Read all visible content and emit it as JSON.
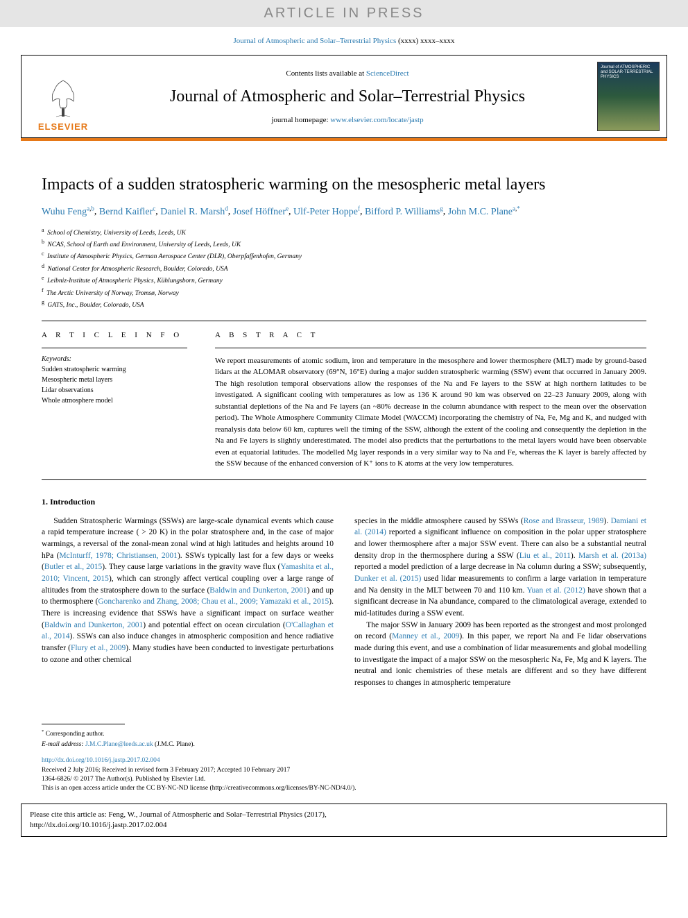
{
  "banner": "ARTICLE IN PRESS",
  "journal_ref": {
    "name": "Journal of Atmospheric and Solar–Terrestrial Physics",
    "pages": "(xxxx) xxxx–xxxx"
  },
  "header": {
    "contents_prefix": "Contents lists available at ",
    "contents_link": "ScienceDirect",
    "journal_name": "Journal of Atmospheric and Solar–Terrestrial Physics",
    "homepage_prefix": "journal homepage: ",
    "homepage_link": "www.elsevier.com/locate/jastp",
    "publisher": "ELSEVIER",
    "cover_title": "Journal of ATMOSPHERIC and SOLAR-TERRESTRIAL PHYSICS"
  },
  "article": {
    "title": "Impacts of a sudden stratospheric warming on the mesospheric metal layers",
    "authors": [
      {
        "name": "Wuhu Feng",
        "aff": "a,b"
      },
      {
        "name": "Bernd Kaifler",
        "aff": "c"
      },
      {
        "name": "Daniel R. Marsh",
        "aff": "d"
      },
      {
        "name": "Josef Höffner",
        "aff": "e"
      },
      {
        "name": "Ulf-Peter Hoppe",
        "aff": "f"
      },
      {
        "name": "Bifford P. Williams",
        "aff": "g"
      },
      {
        "name": "John M.C. Plane",
        "aff": "a,*"
      }
    ],
    "affiliations": [
      {
        "sup": "a",
        "text": "School of Chemistry, University of Leeds, Leeds, UK"
      },
      {
        "sup": "b",
        "text": "NCAS, School of Earth and Environment, University of Leeds, Leeds, UK"
      },
      {
        "sup": "c",
        "text": "Institute of Atmospheric Physics, German Aerospace Center (DLR), Oberpfaffenhofen, Germany"
      },
      {
        "sup": "d",
        "text": "National Center for Atmospheric Research, Boulder, Colorado, USA"
      },
      {
        "sup": "e",
        "text": "Leibniz-Institute of Atmospheric Physics, Kühlungsborn, Germany"
      },
      {
        "sup": "f",
        "text": "The Arctic University of Norway, Tromsø, Norway"
      },
      {
        "sup": "g",
        "text": "GATS, Inc., Boulder, Colorado, USA"
      }
    ]
  },
  "info": {
    "head": "A R T I C L E  I N F O",
    "keywords_label": "Keywords:",
    "keywords": [
      "Sudden stratospheric warming",
      "Mesospheric metal layers",
      "Lidar observations",
      "Whole atmosphere model"
    ]
  },
  "abstract": {
    "head": "A B S T R A C T",
    "text": "We report measurements of atomic sodium, iron and temperature in the mesosphere and lower thermosphere (MLT) made by ground-based lidars at the ALOMAR observatory (69°N, 16°E) during a major sudden stratospheric warming (SSW) event that occurred in January 2009. The high resolution temporal observations allow the responses of the Na and Fe layers to the SSW at high northern latitudes to be investigated. A significant cooling with temperatures as low as 136 K around 90 km was observed on 22–23 January 2009, along with substantial depletions of the Na and Fe layers (an ~80% decrease in the column abundance with respect to the mean over the observation period). The Whole Atmosphere Community Climate Model (WACCM) incorporating the chemistry of Na, Fe, Mg and K, and nudged with reanalysis data below 60 km, captures well the timing of the SSW, although the extent of the cooling and consequently the depletion in the Na and Fe layers is slightly underestimated. The model also predicts that the perturbations to the metal layers would have been observable even at equatorial latitudes. The modelled Mg layer responds in a very similar way to Na and Fe, whereas the K layer is barely affected by the SSW because of the enhanced conversion of K⁺ ions to K atoms at the very low temperatures."
  },
  "intro": {
    "head": "1. Introduction",
    "col1_parts": [
      {
        "t": "text",
        "v": "Sudden Stratospheric Warmings (SSWs) are large-scale dynamical events which cause a rapid temperature increase ( > 20 K) in the polar stratosphere and, in the case of major warmings, a reversal of the zonal-mean zonal wind at high latitudes and heights around 10 hPa ("
      },
      {
        "t": "link",
        "v": "McInturff, 1978; Christiansen, 2001"
      },
      {
        "t": "text",
        "v": "). SSWs typically last for a few days or weeks ("
      },
      {
        "t": "link",
        "v": "Butler et al., 2015"
      },
      {
        "t": "text",
        "v": "). They cause large variations in the gravity wave flux ("
      },
      {
        "t": "link",
        "v": "Yamashita et al., 2010; Vincent, 2015"
      },
      {
        "t": "text",
        "v": "), which can strongly affect vertical coupling over a large range of altitudes from the stratosphere down to the surface ("
      },
      {
        "t": "link",
        "v": "Baldwin and Dunkerton, 2001"
      },
      {
        "t": "text",
        "v": ") and up to thermosphere ("
      },
      {
        "t": "link",
        "v": "Goncharenko and Zhang, 2008; Chau et al., 2009; Yamazaki et al., 2015"
      },
      {
        "t": "text",
        "v": "). There is increasing evidence that SSWs have a significant impact on surface weather ("
      },
      {
        "t": "link",
        "v": "Baldwin and Dunkerton, 2001"
      },
      {
        "t": "text",
        "v": ") and potential effect on ocean circulation ("
      },
      {
        "t": "link",
        "v": "O'Callaghan et al., 2014"
      },
      {
        "t": "text",
        "v": "). SSWs can also induce changes in atmospheric composition and hence radiative transfer ("
      },
      {
        "t": "link",
        "v": "Flury et al., 2009"
      },
      {
        "t": "text",
        "v": "). Many studies have been conducted to investigate perturbations to ozone and other chemical"
      }
    ],
    "col2_p1_parts": [
      {
        "t": "text",
        "v": "species in the middle atmosphere caused by SSWs ("
      },
      {
        "t": "link",
        "v": "Rose and Brasseur, 1989"
      },
      {
        "t": "text",
        "v": "). "
      },
      {
        "t": "link",
        "v": "Damiani et al. (2014)"
      },
      {
        "t": "text",
        "v": " reported a significant influence on composition in the polar upper stratosphere and lower thermosphere after a major SSW event. There can also be a substantial neutral density drop in the thermosphere during a SSW ("
      },
      {
        "t": "link",
        "v": "Liu et al., 2011"
      },
      {
        "t": "text",
        "v": "). "
      },
      {
        "t": "link",
        "v": "Marsh et al. (2013a)"
      },
      {
        "t": "text",
        "v": " reported a model prediction of a large decrease in Na column during a SSW; subsequently, "
      },
      {
        "t": "link",
        "v": "Dunker et al. (2015)"
      },
      {
        "t": "text",
        "v": " used lidar measurements to confirm a large variation in temperature and Na density in the MLT between 70 and 110 km. "
      },
      {
        "t": "link",
        "v": "Yuan et al. (2012)"
      },
      {
        "t": "text",
        "v": " have shown that a significant decrease in Na abundance, compared to the climatological average, extended to mid-latitudes during a SSW event."
      }
    ],
    "col2_p2_parts": [
      {
        "t": "text",
        "v": "The major SSW in January 2009 has been reported as the strongest and most prolonged on record ("
      },
      {
        "t": "link",
        "v": "Manney et al., 2009"
      },
      {
        "t": "text",
        "v": "). In this paper, we report Na and Fe lidar observations made during this event, and use a combination of lidar measurements and global modelling to investigate the impact of a major SSW on the mesospheric Na, Fe, Mg and K layers. The neutral and ionic chemistries of these metals are different and so they have different responses to changes in atmospheric temperature"
      }
    ]
  },
  "footer": {
    "corr_mark": "*",
    "corr_text": "Corresponding author.",
    "email_label": "E-mail address: ",
    "email": "J.M.C.Plane@leeds.ac.uk",
    "email_suffix": " (J.M.C. Plane).",
    "doi": "http://dx.doi.org/10.1016/j.jastp.2017.02.004",
    "received": "Received 2 July 2016; Received in revised form 3 February 2017; Accepted 10 February 2017",
    "issn": "1364-6826/ © 2017 The Author(s). Published by Elsevier Ltd.",
    "license": "This is an open access article under the CC BY-NC-ND license (http://creativecommons.org/licenses/BY-NC-ND/4.0/)."
  },
  "cite_box": {
    "line1": "Please cite this article as: Feng, W., Journal of Atmospheric and Solar–Terrestrial Physics (2017),",
    "line2": "http://dx.doi.org/10.1016/j.jastp.2017.02.004"
  },
  "colors": {
    "banner_bg": "#e5e5e5",
    "banner_text": "#888888",
    "link": "#2a7ab0",
    "orange": "#e67817"
  }
}
